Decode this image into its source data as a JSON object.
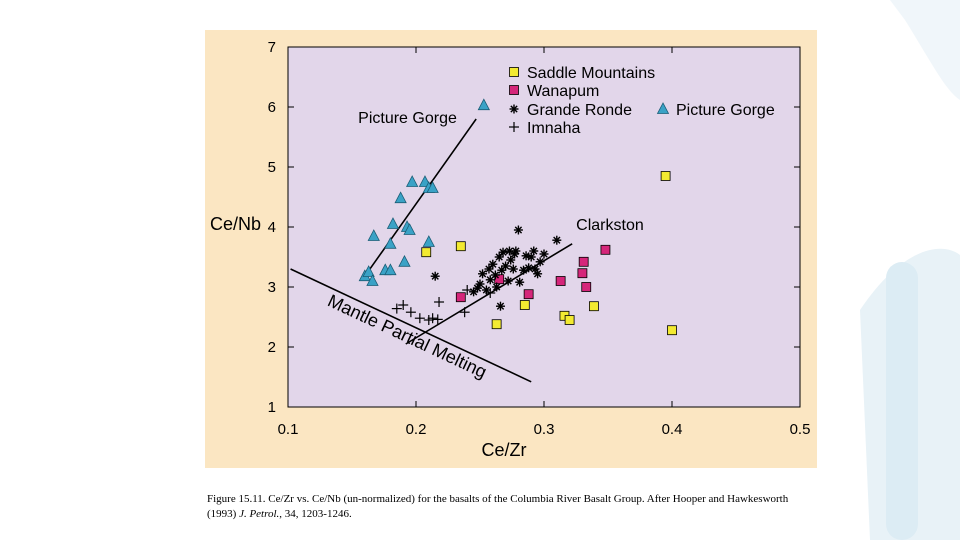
{
  "chart_data": {
    "type": "scatter",
    "xlabel": "Ce/Zr",
    "ylabel": "Ce/Nb",
    "xlim": [
      0.1,
      0.5
    ],
    "ylim": [
      1,
      7
    ],
    "x_ticks": [
      "0.1",
      "0.2",
      "0.3",
      "0.4",
      "0.5"
    ],
    "y_ticks": [
      "1",
      "2",
      "3",
      "4",
      "5",
      "6",
      "7"
    ],
    "grid": false,
    "legend_position": "top-right",
    "colors": {
      "panel_bg": "#fbe6c2",
      "plot_bg": "#e2d6ea",
      "saddle": "#f3ea31",
      "wanapum": "#d5267a",
      "picture_gorge": "#3aa2c6",
      "marker": "#000000"
    },
    "series": [
      {
        "name": "Saddle Mountains",
        "marker": "square",
        "points": [
          [
            0.395,
            4.85
          ],
          [
            0.208,
            3.58
          ],
          [
            0.235,
            3.68
          ],
          [
            0.263,
            2.38
          ],
          [
            0.285,
            2.7
          ],
          [
            0.316,
            2.52
          ],
          [
            0.32,
            2.45
          ],
          [
            0.339,
            2.68
          ],
          [
            0.4,
            2.28
          ]
        ]
      },
      {
        "name": "Wanapum",
        "marker": "square",
        "points": [
          [
            0.235,
            2.83
          ],
          [
            0.265,
            3.13
          ],
          [
            0.288,
            2.88
          ],
          [
            0.313,
            3.1
          ],
          [
            0.33,
            3.23
          ],
          [
            0.331,
            3.42
          ],
          [
            0.333,
            3.0
          ],
          [
            0.348,
            3.62
          ]
        ]
      },
      {
        "name": "Grande Ronde",
        "marker": "asterisk",
        "points": [
          [
            0.215,
            3.18
          ],
          [
            0.245,
            2.92
          ],
          [
            0.248,
            2.98
          ],
          [
            0.25,
            3.05
          ],
          [
            0.252,
            3.22
          ],
          [
            0.255,
            2.95
          ],
          [
            0.257,
            3.3
          ],
          [
            0.258,
            3.12
          ],
          [
            0.26,
            3.38
          ],
          [
            0.262,
            3.2
          ],
          [
            0.263,
            3.0
          ],
          [
            0.265,
            3.5
          ],
          [
            0.266,
            2.68
          ],
          [
            0.267,
            3.28
          ],
          [
            0.268,
            3.58
          ],
          [
            0.27,
            3.35
          ],
          [
            0.272,
            3.1
          ],
          [
            0.273,
            3.6
          ],
          [
            0.274,
            3.45
          ],
          [
            0.276,
            3.3
          ],
          [
            0.277,
            3.55
          ],
          [
            0.278,
            3.6
          ],
          [
            0.28,
            3.95
          ],
          [
            0.281,
            3.08
          ],
          [
            0.284,
            3.28
          ],
          [
            0.286,
            3.52
          ],
          [
            0.288,
            3.32
          ],
          [
            0.29,
            3.5
          ],
          [
            0.292,
            3.6
          ],
          [
            0.293,
            3.3
          ],
          [
            0.295,
            3.22
          ],
          [
            0.297,
            3.42
          ],
          [
            0.3,
            3.55
          ],
          [
            0.31,
            3.78
          ]
        ]
      },
      {
        "name": "Picture Gorge",
        "marker": "triangle",
        "points": [
          [
            0.253,
            6.03
          ],
          [
            0.16,
            3.18
          ],
          [
            0.163,
            3.25
          ],
          [
            0.166,
            3.1
          ],
          [
            0.167,
            3.85
          ],
          [
            0.176,
            3.28
          ],
          [
            0.18,
            3.28
          ],
          [
            0.18,
            3.72
          ],
          [
            0.182,
            4.05
          ],
          [
            0.188,
            4.48
          ],
          [
            0.191,
            3.42
          ],
          [
            0.193,
            4.0
          ],
          [
            0.195,
            3.95
          ],
          [
            0.197,
            4.75
          ],
          [
            0.207,
            4.75
          ],
          [
            0.21,
            4.65
          ],
          [
            0.21,
            3.75
          ],
          [
            0.213,
            4.65
          ]
        ]
      },
      {
        "name": "Imnaha",
        "marker": "plus",
        "points": [
          [
            0.185,
            2.64
          ],
          [
            0.19,
            2.7
          ],
          [
            0.196,
            2.58
          ],
          [
            0.203,
            2.48
          ],
          [
            0.21,
            2.45
          ],
          [
            0.213,
            2.48
          ],
          [
            0.217,
            2.46
          ],
          [
            0.218,
            2.75
          ],
          [
            0.238,
            2.58
          ],
          [
            0.24,
            2.95
          ],
          [
            0.258,
            2.9
          ]
        ]
      }
    ],
    "trend_lines": [
      {
        "label": "Picture Gorge",
        "from": [
          0.16,
          3.18
        ],
        "to": [
          0.247,
          5.8
        ]
      },
      {
        "label": "Clarkston",
        "from": [
          0.192,
          2.05
        ],
        "to": [
          0.322,
          3.72
        ]
      },
      {
        "label": "Mantle Partial Melting",
        "from": [
          0.102,
          3.3
        ],
        "to": [
          0.29,
          1.42
        ]
      }
    ]
  },
  "caption": {
    "text": "Figure 15.11. Ce/Zr vs. Ce/Nb (un-normalized) for the basalts of the Columbia River Basalt Group. After Hooper and Hawkesworth (1993)",
    "journal": "J. Petrol.",
    "details": ", 34, 1203-1246."
  }
}
